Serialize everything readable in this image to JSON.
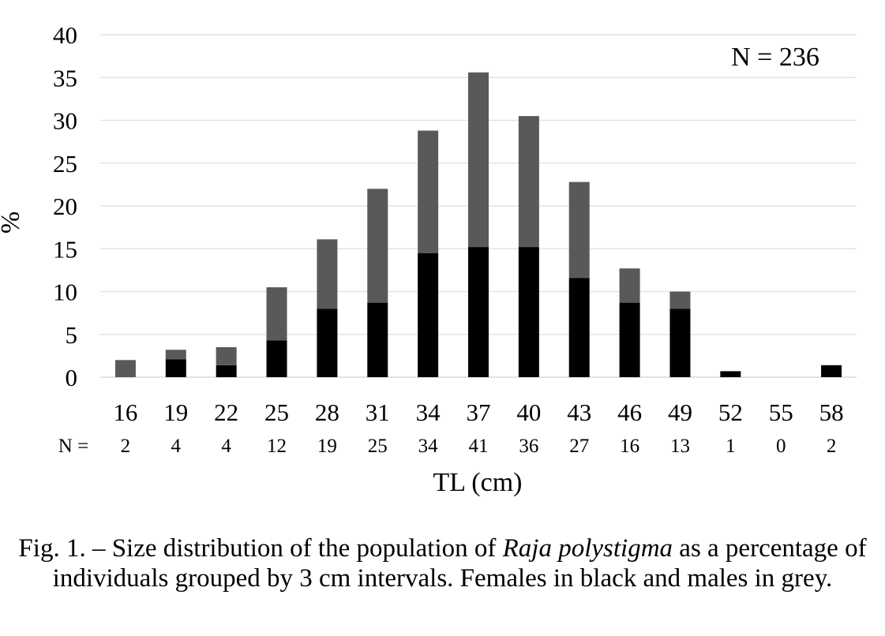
{
  "chart_data": {
    "type": "bar",
    "stacked": true,
    "categories": [
      "16",
      "19",
      "22",
      "25",
      "28",
      "31",
      "34",
      "37",
      "40",
      "43",
      "46",
      "49",
      "52",
      "55",
      "58"
    ],
    "counts_label": "N =",
    "counts": [
      "2",
      "4",
      "4",
      "12",
      "19",
      "25",
      "34",
      "41",
      "36",
      "27",
      "16",
      "13",
      "1",
      "0",
      "2"
    ],
    "series": [
      {
        "values": [
          0,
          2.1,
          1.4,
          4.3,
          8.0,
          8.7,
          14.5,
          15.2,
          15.2,
          11.6,
          8.7,
          8.0,
          0.7,
          0,
          1.4
        ],
        "color": "#000000"
      },
      {
        "values": [
          2.0,
          1.1,
          2.1,
          6.2,
          8.1,
          13.3,
          14.3,
          20.4,
          15.3,
          11.2,
          4.0,
          2.0,
          0,
          0,
          0
        ],
        "color": "#595959"
      }
    ],
    "ylim": [
      0,
      40
    ],
    "yticks": [
      "0",
      "5",
      "10",
      "15",
      "20",
      "25",
      "30",
      "35",
      "40"
    ],
    "xlabel": "TL (cm)",
    "ylabel": "%",
    "annotation": "N = 236",
    "grid": true
  },
  "caption": {
    "prefix": "Fig. 1. – Size distribution of the population of ",
    "species": "Raja polystigma",
    "suffix": " as a percentage of individuals grouped by 3 cm intervals. Females in black and males in grey."
  }
}
